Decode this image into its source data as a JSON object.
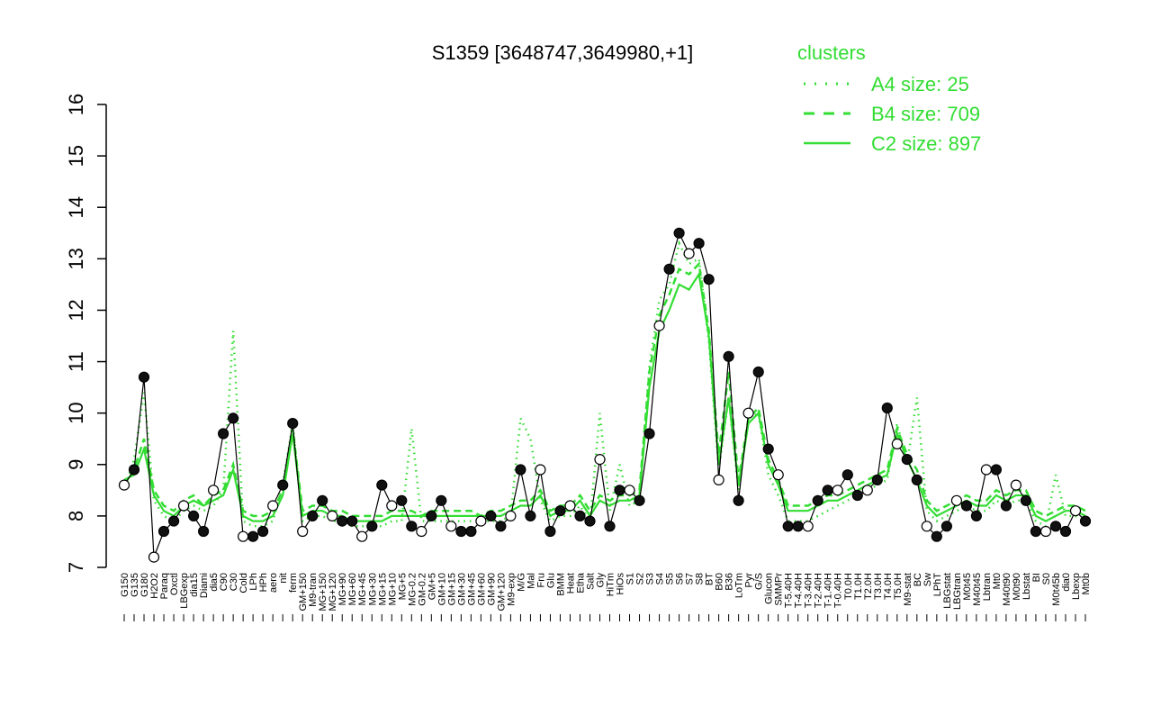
{
  "chart_data": {
    "type": "line",
    "title": "S1359 [3648747,3649980,+1]",
    "xlabel": "",
    "ylabel": "",
    "ylim": [
      7,
      16
    ],
    "y_ticks": [
      7,
      8,
      9,
      10,
      11,
      12,
      13,
      14,
      15,
      16
    ],
    "x_tick_labels": [
      "G150",
      "G135",
      "G180",
      "H2O2",
      "Paraq",
      "Oxctl",
      "LBGexp",
      "dia15",
      "Diami",
      "dia5",
      "C90",
      "C30",
      "Cold",
      "LPh",
      "HPh",
      "aero",
      "nit",
      "ferm",
      "GM+150",
      "M9-tran",
      "MG+150",
      "MG+120",
      "MG+90",
      "MG+60",
      "MG+45",
      "MG+30",
      "MG+15",
      "MG+10",
      "MG+5",
      "MG-0.2",
      "GM-0.2",
      "GM+5",
      "GM+10",
      "GM+15",
      "GM+30",
      "GM+45",
      "GM+60",
      "GM+90",
      "GM+120",
      "M9-exp",
      "M/G",
      "Mal",
      "Fru",
      "Glu",
      "BMM",
      "Heat",
      "Etha",
      "Salt",
      "Gly",
      "HiTm",
      "HiOs",
      "S1",
      "S2",
      "S3",
      "S4",
      "S5",
      "S6",
      "S7",
      "S8",
      "BT",
      "B60",
      "B36",
      "LoTm",
      "Pyr",
      "G/S",
      "Glucon",
      "SMMPr",
      "T-5.40H",
      "T-4.40H",
      "T-3.40H",
      "T-2.40H",
      "T-1.40H",
      "T-0.40H",
      "T0.0H",
      "T1.0H",
      "T2.0H",
      "T3.0H",
      "T4.0H",
      "T5.0H",
      "M9-stat",
      "BC",
      "Sw",
      "LPhT",
      "LBGstat",
      "LBGtran",
      "M0t45",
      "M40t45",
      "Lbtran",
      "Mt0",
      "M40t90",
      "M0t90",
      "Lbstat",
      "BI",
      "S0",
      "M0t45b",
      "dia0",
      "Lbexp",
      "Mt0b"
    ],
    "legend": {
      "title": "clusters",
      "placement": "top-right",
      "entries": [
        {
          "label": "A4 size: 25",
          "style": "dotted"
        },
        {
          "label": "B4 size: 709",
          "style": "dashed"
        },
        {
          "label": "C2 size: 897",
          "style": "solid"
        }
      ]
    },
    "line_color": "#33dd33",
    "marker_color": "#000000",
    "series": [
      {
        "name": "C2 size: 897",
        "style": "solid",
        "values": [
          8.7,
          8.8,
          9.3,
          8.4,
          8.1,
          8.0,
          8.2,
          8.3,
          8.2,
          8.3,
          8.4,
          8.9,
          8.0,
          7.9,
          7.9,
          8.0,
          8.4,
          9.6,
          8.0,
          8.1,
          8.1,
          8.0,
          8.0,
          7.9,
          7.9,
          7.9,
          7.9,
          8.0,
          8.0,
          8.0,
          8.0,
          8.0,
          8.0,
          8.0,
          8.0,
          8.0,
          8.0,
          8.0,
          8.0,
          8.1,
          8.2,
          8.2,
          8.4,
          8.0,
          8.1,
          8.1,
          8.3,
          8.0,
          8.3,
          8.2,
          8.3,
          8.3,
          8.4,
          10.5,
          11.6,
          12.0,
          12.5,
          12.4,
          12.7,
          11.5,
          9.0,
          10.3,
          8.6,
          9.8,
          10.0,
          9.0,
          8.6,
          8.1,
          8.1,
          8.1,
          8.2,
          8.3,
          8.3,
          8.4,
          8.5,
          8.6,
          8.7,
          8.8,
          9.6,
          9.1,
          8.7,
          8.2,
          8.0,
          8.1,
          8.2,
          8.3,
          8.2,
          8.2,
          8.4,
          8.3,
          8.4,
          8.4,
          8.0,
          7.9,
          8.0,
          8.1,
          8.1,
          8.0
        ]
      },
      {
        "name": "B4 size: 709",
        "style": "dashed",
        "values": [
          8.6,
          8.9,
          9.5,
          8.5,
          8.2,
          8.1,
          8.3,
          8.4,
          8.2,
          8.4,
          8.5,
          9.0,
          8.1,
          8.0,
          8.0,
          8.1,
          8.5,
          9.7,
          8.1,
          8.2,
          8.2,
          8.1,
          8.1,
          8.0,
          8.0,
          8.0,
          8.0,
          8.1,
          8.1,
          8.1,
          8.0,
          8.1,
          8.1,
          8.1,
          8.1,
          8.1,
          8.0,
          8.1,
          8.1,
          8.2,
          8.3,
          8.3,
          8.5,
          8.1,
          8.2,
          8.2,
          8.4,
          8.1,
          8.4,
          8.3,
          8.4,
          8.4,
          8.5,
          10.8,
          11.9,
          12.3,
          12.8,
          12.7,
          12.9,
          11.6,
          9.2,
          10.8,
          8.7,
          9.9,
          10.1,
          9.1,
          8.7,
          8.2,
          8.2,
          8.2,
          8.3,
          8.4,
          8.4,
          8.5,
          8.6,
          8.7,
          8.8,
          8.9,
          9.7,
          9.2,
          8.9,
          8.3,
          8.1,
          8.2,
          8.3,
          8.4,
          8.3,
          8.3,
          8.5,
          8.4,
          8.5,
          8.5,
          8.1,
          8.0,
          8.1,
          8.2,
          8.2,
          8.1
        ]
      },
      {
        "name": "A4 size: 25",
        "style": "dotted",
        "values": [
          8.5,
          9.1,
          10.4,
          8.3,
          8.0,
          7.9,
          8.1,
          8.2,
          8.1,
          8.2,
          8.5,
          11.6,
          7.9,
          7.8,
          7.8,
          7.9,
          8.6,
          9.8,
          7.9,
          8.0,
          8.0,
          7.9,
          7.9,
          7.8,
          7.8,
          7.8,
          7.8,
          7.9,
          7.9,
          9.7,
          7.9,
          7.9,
          7.9,
          7.9,
          7.9,
          7.9,
          7.9,
          7.9,
          7.9,
          8.0,
          9.9,
          9.5,
          8.3,
          7.9,
          8.0,
          8.0,
          8.2,
          7.9,
          10.0,
          8.1,
          9.0,
          8.2,
          8.3,
          10.9,
          12.2,
          12.5,
          13.3,
          12.9,
          13.0,
          11.4,
          8.9,
          10.3,
          8.5,
          9.9,
          10.0,
          8.8,
          8.4,
          7.9,
          7.9,
          7.9,
          8.0,
          8.1,
          8.2,
          8.3,
          8.4,
          8.5,
          8.6,
          8.7,
          9.8,
          9.0,
          10.3,
          8.1,
          7.9,
          8.0,
          8.1,
          8.2,
          8.1,
          8.1,
          8.3,
          8.2,
          8.3,
          8.3,
          7.9,
          7.8,
          8.8,
          8.0,
          8.0,
          7.9
        ]
      }
    ],
    "points": [
      8.6,
      8.9,
      10.7,
      7.2,
      7.7,
      7.9,
      8.2,
      8.0,
      7.7,
      8.5,
      9.6,
      9.9,
      7.6,
      7.6,
      7.7,
      8.2,
      8.6,
      9.8,
      7.7,
      8.0,
      8.3,
      8.0,
      7.9,
      7.9,
      7.6,
      7.8,
      8.6,
      8.2,
      8.3,
      7.8,
      7.7,
      8.0,
      8.3,
      7.8,
      7.7,
      7.7,
      7.9,
      8.0,
      7.8,
      8.0,
      8.9,
      8.0,
      8.9,
      7.7,
      8.1,
      8.2,
      8.0,
      7.9,
      9.1,
      7.8,
      8.5,
      8.5,
      8.3,
      9.6,
      11.7,
      12.8,
      13.5,
      13.1,
      13.3,
      12.6,
      8.7,
      11.1,
      8.3,
      10.0,
      10.8,
      9.3,
      8.8,
      7.8,
      7.8,
      7.8,
      8.3,
      8.5,
      8.5,
      8.8,
      8.4,
      8.5,
      8.7,
      10.1,
      9.4,
      9.1,
      8.7,
      7.8,
      7.6,
      7.8,
      8.3,
      8.2,
      8.0,
      8.9,
      8.9,
      8.2,
      8.6,
      8.3,
      7.7,
      7.7,
      7.8,
      7.7,
      8.1,
      7.9
    ]
  }
}
